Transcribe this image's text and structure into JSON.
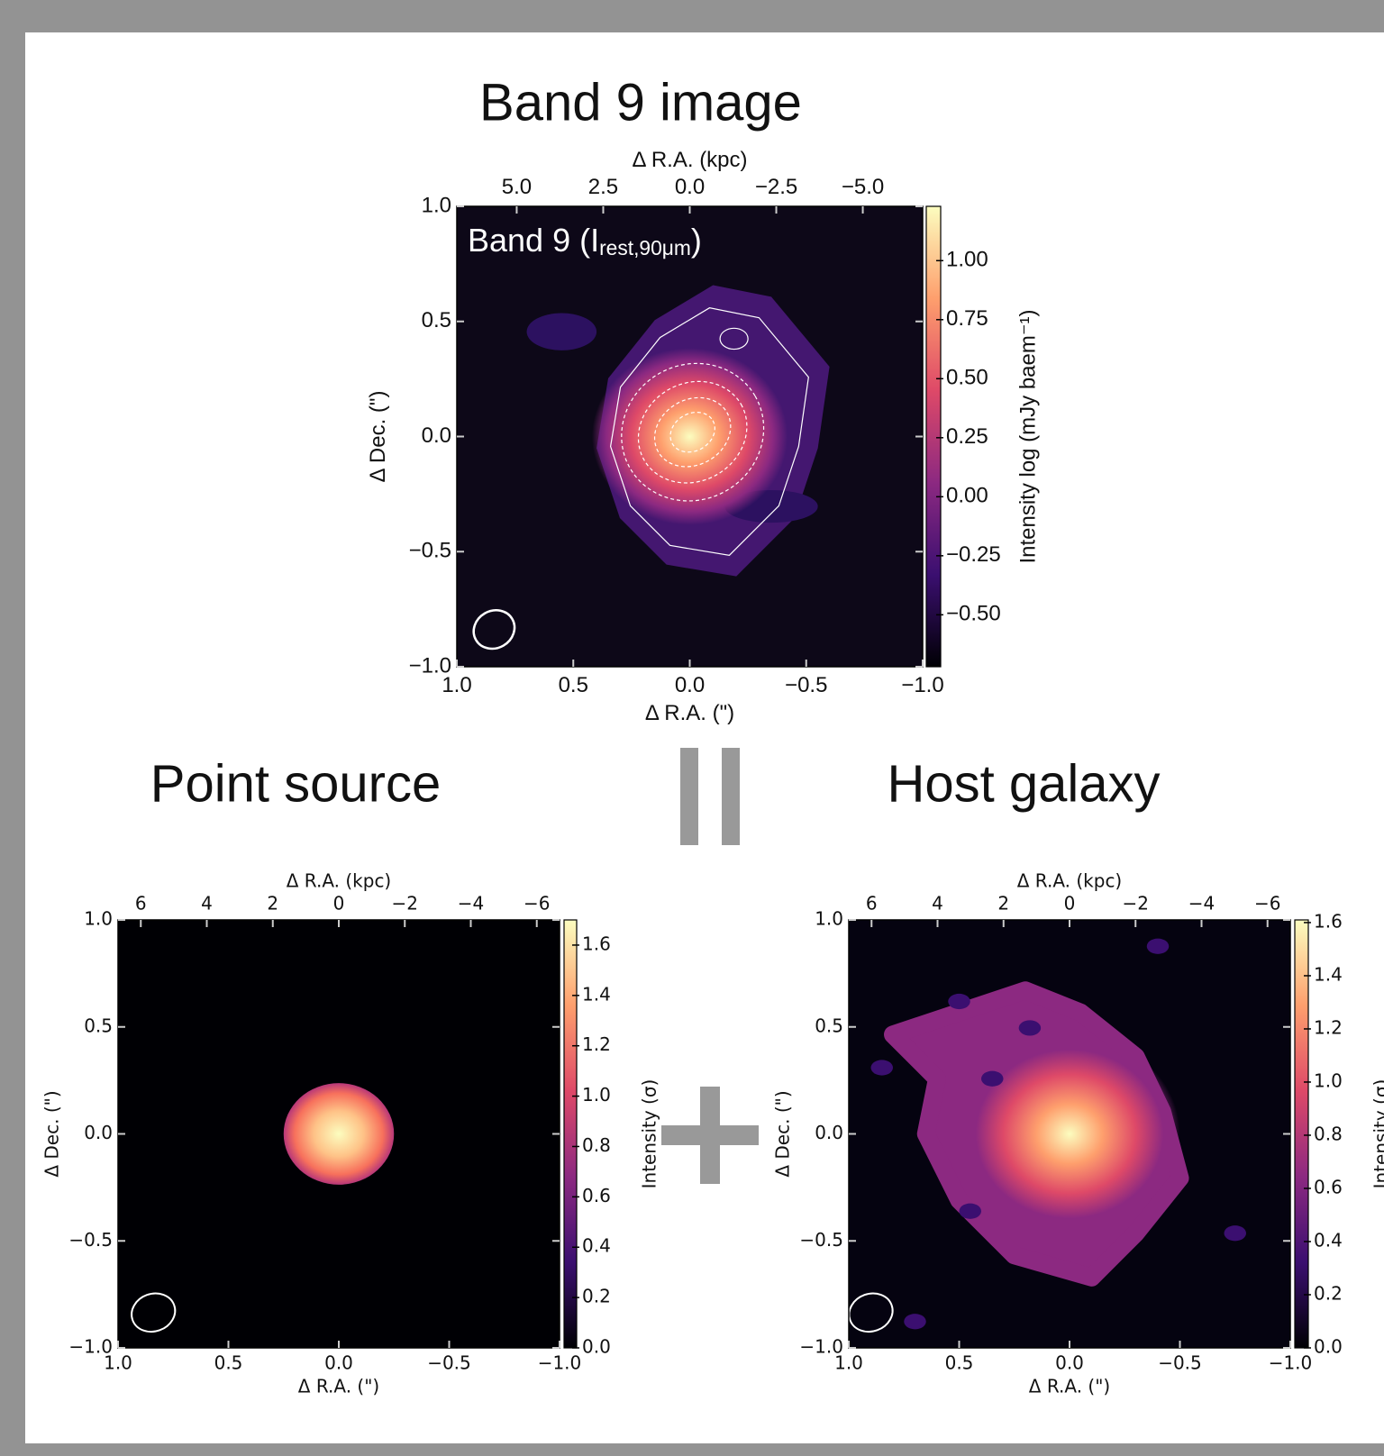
{
  "chart_data": [
    {
      "type": "image",
      "title": "Band 9 image",
      "annotation": {
        "text": "Band 9 (I",
        "subscript": "rest,90μm",
        "close": ")"
      },
      "xlabel": "Δ R.A. (\")",
      "ylabel": "Δ Dec. (\")",
      "x2label": "Δ R.A. (kpc)",
      "colorbar_label": "Intensity log (mJy baem⁻¹)",
      "xlim": [
        1.0,
        -1.0
      ],
      "xticks": [
        {
          "value": 1,
          "label": "1.0"
        },
        0.5,
        {
          "value": 0,
          "label": "0.0"
        },
        {
          "value": -0.5,
          "label": "−0.5"
        },
        {
          "value": -1,
          "label": "−1.0"
        }
      ],
      "ylim": [
        -1.0,
        1.0
      ],
      "yticks": [
        {
          "value": -1,
          "label": "−1.0"
        },
        {
          "value": -0.5,
          "label": "−0.5"
        },
        {
          "value": 0,
          "label": "0.0"
        },
        0.5,
        {
          "value": 1,
          "label": "1.0"
        }
      ],
      "x2lim": [
        6.73,
        -6.73
      ],
      "x2ticks": [
        {
          "value": 5,
          "label": "5.0"
        },
        2.5,
        {
          "value": 0,
          "label": "0.0"
        },
        {
          "value": -2.5,
          "label": "−2.5"
        },
        {
          "value": -5,
          "label": "−5.0"
        }
      ],
      "clim": [
        -0.72,
        1.23
      ],
      "cticks": [
        {
          "value": -0.5,
          "label": "−0.50"
        },
        {
          "value": -0.25,
          "label": "−0.25"
        },
        {
          "value": 0,
          "label": "0.00"
        },
        0.25,
        {
          "value": 0.5,
          "label": "0.50"
        },
        0.75,
        {
          "value": 1,
          "label": "1.00"
        }
      ],
      "colormap": [
        "#000004",
        "#3b0f70",
        "#8c2981",
        "#de4968",
        "#fe9f6d",
        "#fcfdbf"
      ]
    },
    {
      "type": "image",
      "title": "Point source",
      "xlabel": "Δ R.A. (\")",
      "ylabel": "Δ Dec. (\")",
      "x2label": "Δ R.A. (kpc)",
      "colorbar_label": "Intensity (σ)",
      "xlim": [
        1.0,
        -1.0
      ],
      "xticks": [
        {
          "value": 1,
          "label": "1.0"
        },
        0.5,
        {
          "value": 0,
          "label": "0.0"
        },
        {
          "value": -0.5,
          "label": "−0.5"
        },
        {
          "value": -1,
          "label": "−1.0"
        }
      ],
      "ylim": [
        -1.0,
        1.0
      ],
      "yticks": [
        {
          "value": -1,
          "label": "−1.0"
        },
        {
          "value": -0.5,
          "label": "−0.5"
        },
        {
          "value": 0,
          "label": "0.0"
        },
        0.5,
        {
          "value": 1,
          "label": "1.0"
        }
      ],
      "x2lim": [
        6.69,
        -6.69
      ],
      "x2ticks": [
        6,
        4,
        2,
        0,
        {
          "value": -2,
          "label": "−2"
        },
        {
          "value": -4,
          "label": "−4"
        },
        {
          "value": -6,
          "label": "−6"
        }
      ],
      "clim": [
        0,
        1.7
      ],
      "cticks": [
        {
          "value": 0,
          "label": "0.0"
        },
        0.2,
        0.4,
        0.6,
        0.8,
        {
          "value": 1,
          "label": "1.0"
        },
        1.2,
        1.4,
        1.6
      ],
      "colormap": [
        "#000004",
        "#3b0f70",
        "#8c2981",
        "#de4968",
        "#fe9f6d",
        "#fcfdbf"
      ]
    },
    {
      "type": "image",
      "title": "Host galaxy",
      "xlabel": "Δ R.A. (\")",
      "ylabel": "Δ Dec. (\")",
      "x2label": "Δ R.A. (kpc)",
      "colorbar_label": "Intensity (σ)",
      "xlim": [
        1.0,
        -1.0
      ],
      "xticks": [
        {
          "value": 1,
          "label": "1.0"
        },
        0.5,
        {
          "value": 0,
          "label": "0.0"
        },
        {
          "value": -0.5,
          "label": "−0.5"
        },
        {
          "value": -1,
          "label": "−1.0"
        }
      ],
      "ylim": [
        -1.0,
        1.0
      ],
      "yticks": [
        {
          "value": -1,
          "label": "−1.0"
        },
        {
          "value": -0.5,
          "label": "−0.5"
        },
        {
          "value": 0,
          "label": "0.0"
        },
        0.5,
        {
          "value": 1,
          "label": "1.0"
        }
      ],
      "x2lim": [
        6.69,
        -6.69
      ],
      "x2ticks": [
        6,
        4,
        2,
        0,
        {
          "value": -2,
          "label": "−2"
        },
        {
          "value": -4,
          "label": "−4"
        },
        {
          "value": -6,
          "label": "−6"
        }
      ],
      "clim": [
        0,
        1.61
      ],
      "cticks": [
        {
          "value": 0,
          "label": "0.0"
        },
        0.2,
        0.4,
        0.6,
        0.8,
        {
          "value": 1,
          "label": "1.0"
        },
        1.2,
        1.4,
        1.6
      ],
      "colormap": [
        "#000004",
        "#3b0f70",
        "#8c2981",
        "#de4968",
        "#fe9f6d",
        "#fcfdbf"
      ]
    }
  ]
}
